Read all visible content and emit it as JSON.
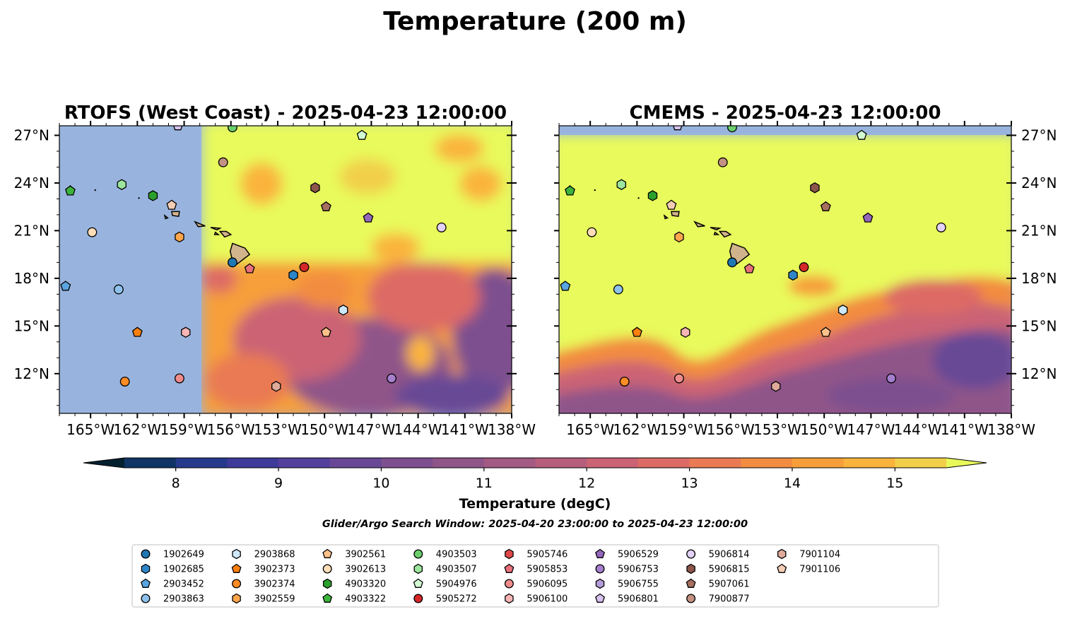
{
  "figure": {
    "title": "Temperature (200 m)",
    "search_window": "Glider/Argo Search Window: 2025-04-20 23:00:00 to 2025-04-23 12:00:00"
  },
  "panels": [
    {
      "title": "RTOFS (West Coast) - 2025-04-23 12:00:00"
    },
    {
      "title": "CMEMS - 2025-04-23 12:00:00"
    }
  ],
  "map": {
    "lon_range": [
      -167,
      -138
    ],
    "lat_range": [
      9.5,
      27.6
    ],
    "x_ticks": [
      -165,
      -162,
      -159,
      -156,
      -153,
      -150,
      -147,
      -144,
      -141,
      -138
    ],
    "x_tick_labels": [
      "165°W",
      "162°W",
      "159°W",
      "156°W",
      "153°W",
      "150°W",
      "147°W",
      "144°W",
      "141°W",
      "138°W"
    ],
    "y_ticks": [
      12,
      15,
      18,
      21,
      24,
      27
    ],
    "y_tick_labels": [
      "12°N",
      "15°N",
      "18°N",
      "21°N",
      "24°N",
      "27°N"
    ],
    "land_color": "#d2b48c",
    "ocean_mask_color": "#98b4de",
    "rtofs_data_west_edge_lon": -157.9
  },
  "colorbar": {
    "label": "Temperature (degC)",
    "min": 7.5,
    "max": 15.5,
    "ticks": [
      8,
      9,
      10,
      11,
      12,
      13,
      14,
      15
    ],
    "tick_labels": [
      "8",
      "9",
      "10",
      "11",
      "12",
      "13",
      "14",
      "15"
    ],
    "under_color": "#03202e",
    "over_color": "#e8fa5b",
    "colors": [
      "#06293c",
      "#0f3364",
      "#263a8c",
      "#3e3a9a",
      "#553f9c",
      "#684896",
      "#7d4f8f",
      "#8f5589",
      "#a35a83",
      "#b75e7c",
      "#cb6374",
      "#dd6b65",
      "#e97a53",
      "#f28c40",
      "#f69f3a",
      "#fab43c",
      "#f2cf49",
      "#e8fa5b"
    ]
  },
  "floats": [
    {
      "id": "1902649",
      "color": "#1f77b4",
      "marker": "circle",
      "lon": -155.9,
      "lat": 19.0
    },
    {
      "id": "1902685",
      "color": "#2e86c8",
      "marker": "hexagon",
      "lon": null,
      "lat": null
    },
    {
      "id": "2903452",
      "color": "#5aa5df",
      "marker": "pentagon",
      "lon": -166.6,
      "lat": 17.5
    },
    {
      "id": "2903863",
      "color": "#8ec2ec",
      "marker": "circle",
      "lon": -163.2,
      "lat": 17.3
    },
    {
      "id": "2903868",
      "color": "#cde8fb",
      "marker": "hexagon",
      "lon": -148.8,
      "lat": 16.0
    },
    {
      "id": "3902373",
      "color": "#ff7f0e",
      "marker": "pentagon",
      "lon": -162.0,
      "lat": 14.6
    },
    {
      "id": "3902374",
      "color": "#ff8c24",
      "marker": "circle",
      "lon": -162.8,
      "lat": 11.5
    },
    {
      "id": "3902559",
      "color": "#ffa64d",
      "marker": "hexagon",
      "lon": -159.3,
      "lat": 20.6
    },
    {
      "id": "3902561",
      "color": "#ffc18a",
      "marker": "pentagon",
      "lon": null,
      "lat": null
    },
    {
      "id": "3902613",
      "color": "#ffddb8",
      "marker": "circle",
      "lon": -164.9,
      "lat": 20.9
    },
    {
      "id": "4903320",
      "color": "#2ca02c",
      "marker": "hexagon",
      "lon": -161.0,
      "lat": 23.2
    },
    {
      "id": "4903322",
      "color": "#3cb43c",
      "marker": "pentagon",
      "lon": -166.3,
      "lat": 23.5
    },
    {
      "id": "4903503",
      "color": "#6ccf6c",
      "marker": "circle",
      "lon": -155.9,
      "lat": 27.5
    },
    {
      "id": "4903507",
      "color": "#9de69d",
      "marker": "hexagon",
      "lon": -163.0,
      "lat": 23.9
    },
    {
      "id": "5904976",
      "color": "#d3fbd3",
      "marker": "pentagon",
      "lon": -147.6,
      "lat": 27.0
    },
    {
      "id": "5905272",
      "color": "#d62728",
      "marker": "circle",
      "lon": -151.3,
      "lat": 18.7
    },
    {
      "id": "5905746",
      "color": "#e04848",
      "marker": "hexagon",
      "lon": null,
      "lat": null
    },
    {
      "id": "5905853",
      "color": "#e8707a",
      "marker": "pentagon",
      "lon": -154.8,
      "lat": 18.6
    },
    {
      "id": "5906095",
      "color": "#f08c8c",
      "marker": "circle",
      "lon": -159.3,
      "lat": 11.7
    },
    {
      "id": "5906100",
      "color": "#f7b5b5",
      "marker": "hexagon",
      "lon": -158.9,
      "lat": 14.6
    },
    {
      "id": "5906529",
      "color": "#9467bd",
      "marker": "pentagon",
      "lon": -147.2,
      "lat": 21.8
    },
    {
      "id": "5906753",
      "color": "#a57fce",
      "marker": "circle",
      "lon": -145.7,
      "lat": 11.7
    },
    {
      "id": "5906755",
      "color": "#b59bd9",
      "marker": "hexagon",
      "lon": null,
      "lat": null
    },
    {
      "id": "5906801",
      "color": "#d6c2ee",
      "marker": "pentagon",
      "lon": -159.4,
      "lat": 27.6
    },
    {
      "id": "5906814",
      "color": "#e3d2f8",
      "marker": "circle",
      "lon": -142.5,
      "lat": 21.2
    },
    {
      "id": "5906815",
      "color": "#8c564b",
      "marker": "hexagon",
      "lon": -150.6,
      "lat": 23.7
    },
    {
      "id": "5907061",
      "color": "#a66f5f",
      "marker": "pentagon",
      "lon": -149.9,
      "lat": 22.5
    },
    {
      "id": "7900877",
      "color": "#c39282",
      "marker": "circle",
      "lon": -156.5,
      "lat": 25.3
    },
    {
      "id": "7901104",
      "color": "#e0aa9a",
      "marker": "hexagon",
      "lon": -153.1,
      "lat": 11.2
    },
    {
      "id": "7901106",
      "color": "#f4cdb5",
      "marker": "pentagon",
      "lon": -159.8,
      "lat": 22.6
    }
  ],
  "hidden_positions": [
    {
      "id": "1902685",
      "lon": -152.0,
      "lat": 18.2
    },
    {
      "id": "3902561",
      "lon": -149.9,
      "lat": 14.6
    },
    {
      "id": "5905746",
      "lon": null,
      "lat": null
    },
    {
      "id": "5906755",
      "lon": null,
      "lat": null
    }
  ]
}
